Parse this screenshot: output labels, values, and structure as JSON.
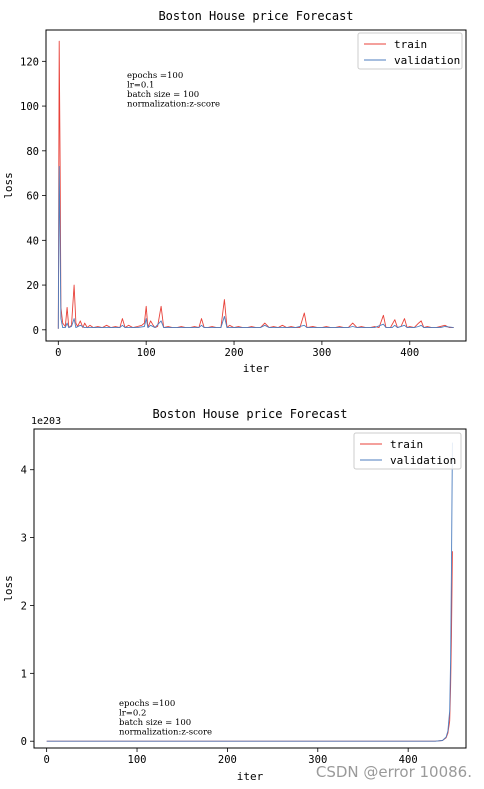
{
  "chart_data": [
    {
      "type": "line",
      "title": "Boston House price Forecast",
      "xlabel": "iter",
      "ylabel": "loss",
      "xlim": [
        -14,
        464
      ],
      "ylim": [
        -5,
        134
      ],
      "xticks": [
        0,
        100,
        200,
        300,
        400
      ],
      "yticks": [
        0,
        20,
        40,
        60,
        80,
        100,
        120
      ],
      "legend_position": "top-right",
      "annotation": [
        "epochs =100",
        "lr=0.1",
        "batch size = 100",
        "normalization:z-score"
      ],
      "series": [
        {
          "name": "train",
          "color": "#e8423a",
          "points": [
            [
              0,
              0.5
            ],
            [
              1,
              129
            ],
            [
              2,
              75
            ],
            [
              3,
              10
            ],
            [
              5,
              3
            ],
            [
              8,
              1.5
            ],
            [
              10,
              10
            ],
            [
              12,
              1
            ],
            [
              15,
              2
            ],
            [
              18,
              20
            ],
            [
              20,
              3
            ],
            [
              22,
              1.5
            ],
            [
              25,
              4
            ],
            [
              28,
              1
            ],
            [
              30,
              3
            ],
            [
              33,
              1
            ],
            [
              36,
              2
            ],
            [
              40,
              1
            ],
            [
              45,
              1.5
            ],
            [
              50,
              1
            ],
            [
              55,
              2
            ],
            [
              60,
              1
            ],
            [
              65,
              1.5
            ],
            [
              70,
              1
            ],
            [
              73,
              5
            ],
            [
              76,
              1
            ],
            [
              80,
              2
            ],
            [
              85,
              1
            ],
            [
              90,
              1.5
            ],
            [
              95,
              2
            ],
            [
              98,
              3
            ],
            [
              100,
              10.5
            ],
            [
              102,
              1
            ],
            [
              105,
              4
            ],
            [
              108,
              2
            ],
            [
              110,
              1
            ],
            [
              113,
              1.5
            ],
            [
              117,
              10.5
            ],
            [
              120,
              1
            ],
            [
              125,
              1.5
            ],
            [
              130,
              1
            ],
            [
              135,
              1
            ],
            [
              140,
              1.5
            ],
            [
              145,
              1
            ],
            [
              150,
              1
            ],
            [
              155,
              1.5
            ],
            [
              160,
              1
            ],
            [
              163,
              5
            ],
            [
              166,
              1
            ],
            [
              170,
              1
            ],
            [
              175,
              1.5
            ],
            [
              180,
              1
            ],
            [
              185,
              1
            ],
            [
              189,
              13.5
            ],
            [
              192,
              1
            ],
            [
              195,
              2
            ],
            [
              200,
              1
            ],
            [
              205,
              1.5
            ],
            [
              210,
              1
            ],
            [
              215,
              1
            ],
            [
              220,
              1.5
            ],
            [
              225,
              1
            ],
            [
              230,
              1
            ],
            [
              235,
              3
            ],
            [
              240,
              1
            ],
            [
              245,
              1.5
            ],
            [
              250,
              1
            ],
            [
              255,
              2
            ],
            [
              260,
              1
            ],
            [
              265,
              1.5
            ],
            [
              270,
              1
            ],
            [
              275,
              1
            ],
            [
              280,
              7.5
            ],
            [
              283,
              1
            ],
            [
              290,
              1.5
            ],
            [
              295,
              1
            ],
            [
              300,
              1
            ],
            [
              305,
              1.5
            ],
            [
              310,
              1
            ],
            [
              315,
              1
            ],
            [
              320,
              1.5
            ],
            [
              325,
              1
            ],
            [
              330,
              1
            ],
            [
              335,
              3
            ],
            [
              340,
              1
            ],
            [
              345,
              1.5
            ],
            [
              350,
              1
            ],
            [
              355,
              1
            ],
            [
              360,
              1.5
            ],
            [
              365,
              1
            ],
            [
              370,
              6.5
            ],
            [
              373,
              1
            ],
            [
              378,
              1
            ],
            [
              383,
              4.5
            ],
            [
              386,
              1
            ],
            [
              390,
              1.5
            ],
            [
              394,
              5
            ],
            [
              397,
              1
            ],
            [
              400,
              1.5
            ],
            [
              405,
              1
            ],
            [
              410,
              3
            ],
            [
              413,
              4
            ],
            [
              416,
              1
            ],
            [
              420,
              1.5
            ],
            [
              425,
              1
            ],
            [
              430,
              1
            ],
            [
              440,
              2
            ],
            [
              445,
              1
            ],
            [
              450,
              1
            ]
          ]
        },
        {
          "name": "validation",
          "color": "#4d7ebf",
          "points": [
            [
              0,
              0.5
            ],
            [
              1,
              73
            ],
            [
              2,
              40
            ],
            [
              3,
              5
            ],
            [
              5,
              1
            ],
            [
              8,
              1
            ],
            [
              10,
              3
            ],
            [
              12,
              1
            ],
            [
              15,
              1.5
            ],
            [
              18,
              5
            ],
            [
              20,
              1
            ],
            [
              25,
              2
            ],
            [
              30,
              1
            ],
            [
              35,
              1
            ],
            [
              40,
              1
            ],
            [
              50,
              1
            ],
            [
              60,
              1
            ],
            [
              70,
              1
            ],
            [
              73,
              2
            ],
            [
              76,
              1
            ],
            [
              80,
              1
            ],
            [
              90,
              1
            ],
            [
              98,
              1.5
            ],
            [
              100,
              5
            ],
            [
              102,
              1
            ],
            [
              105,
              2
            ],
            [
              110,
              1
            ],
            [
              117,
              4
            ],
            [
              120,
              1
            ],
            [
              130,
              1
            ],
            [
              140,
              1
            ],
            [
              150,
              1
            ],
            [
              160,
              1
            ],
            [
              163,
              2
            ],
            [
              166,
              1
            ],
            [
              175,
              1
            ],
            [
              185,
              1
            ],
            [
              189,
              6
            ],
            [
              192,
              1
            ],
            [
              200,
              1
            ],
            [
              210,
              1
            ],
            [
              220,
              1
            ],
            [
              230,
              1
            ],
            [
              235,
              2
            ],
            [
              240,
              1
            ],
            [
              250,
              1
            ],
            [
              260,
              1
            ],
            [
              270,
              1
            ],
            [
              280,
              2
            ],
            [
              283,
              1
            ],
            [
              290,
              1
            ],
            [
              300,
              1
            ],
            [
              310,
              1
            ],
            [
              320,
              1
            ],
            [
              330,
              1
            ],
            [
              335,
              1.5
            ],
            [
              340,
              1
            ],
            [
              350,
              1
            ],
            [
              360,
              1
            ],
            [
              370,
              2.5
            ],
            [
              373,
              1
            ],
            [
              380,
              1
            ],
            [
              383,
              2
            ],
            [
              386,
              1
            ],
            [
              394,
              2
            ],
            [
              397,
              1
            ],
            [
              405,
              1
            ],
            [
              410,
              1.5
            ],
            [
              413,
              2
            ],
            [
              416,
              1
            ],
            [
              425,
              1
            ],
            [
              435,
              1
            ],
            [
              440,
              1.5
            ],
            [
              450,
              1
            ]
          ]
        }
      ]
    },
    {
      "type": "line",
      "title": "Boston House price Forecast",
      "xlabel": "iter",
      "ylabel": "loss",
      "y_offset_label": "1e203",
      "xlim": [
        -14,
        464
      ],
      "ylim": [
        -0.1,
        4.6
      ],
      "xticks": [
        0,
        100,
        200,
        300,
        400
      ],
      "yticks": [
        0,
        1,
        2,
        3,
        4
      ],
      "legend_position": "top-right",
      "annotation": [
        "epochs =100",
        "lr=0.2",
        "batch size = 100",
        "normalization:z-score"
      ],
      "series": [
        {
          "name": "train",
          "color": "#e8423a",
          "points": [
            [
              0,
              0
            ],
            [
              100,
              0
            ],
            [
              200,
              0
            ],
            [
              300,
              0
            ],
            [
              400,
              0
            ],
            [
              430,
              0
            ],
            [
              438,
              0.01
            ],
            [
              442,
              0.05
            ],
            [
              444,
              0.12
            ],
            [
              446,
              0.3
            ],
            [
              447,
              0.8
            ],
            [
              448,
              1.6
            ],
            [
              449,
              2.8
            ]
          ]
        },
        {
          "name": "validation",
          "color": "#4d7ebf",
          "points": [
            [
              0,
              0
            ],
            [
              100,
              0
            ],
            [
              200,
              0
            ],
            [
              300,
              0
            ],
            [
              400,
              0
            ],
            [
              430,
              0
            ],
            [
              438,
              0.01
            ],
            [
              442,
              0.06
            ],
            [
              444,
              0.15
            ],
            [
              446,
              0.45
            ],
            [
              447,
              1.2
            ],
            [
              448,
              2.6
            ],
            [
              449,
              4.4
            ]
          ]
        }
      ]
    }
  ],
  "watermark": "CSDN @error 10086."
}
